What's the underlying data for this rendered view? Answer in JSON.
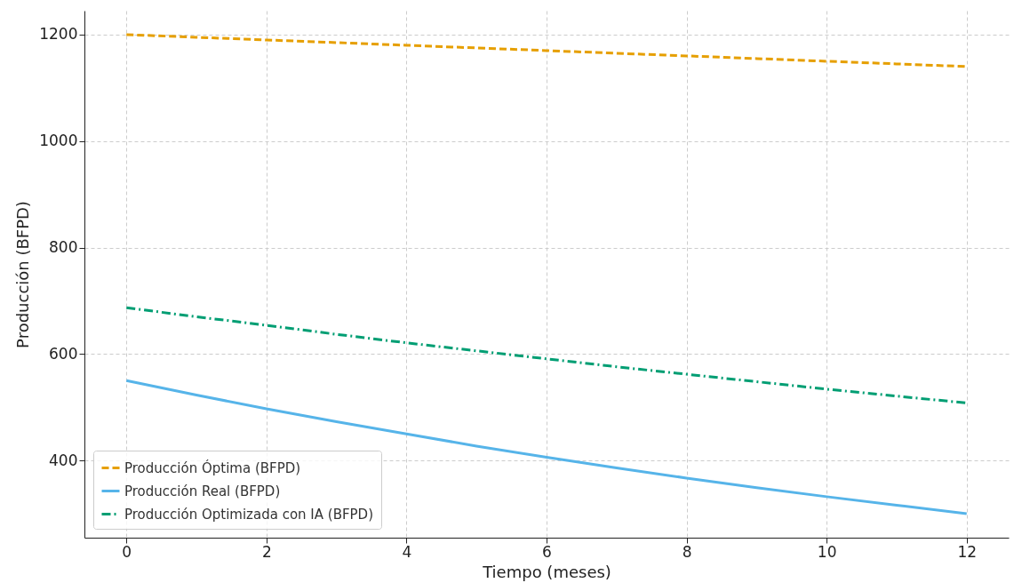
{
  "chart_data": {
    "type": "line",
    "xlabel": "Tiempo (meses)",
    "ylabel": "Producción (BFPD)",
    "x": [
      0,
      1,
      2,
      3,
      4,
      5,
      6,
      7,
      8,
      9,
      10,
      11,
      12
    ],
    "series": [
      {
        "name": "Producción Óptima (BFPD)",
        "color": "#e69f00",
        "line_style": "dashed",
        "values": [
          1200,
          1195,
          1190,
          1185,
          1180,
          1175,
          1170,
          1165,
          1160,
          1155,
          1150,
          1145,
          1140
        ]
      },
      {
        "name": "Producción Real (BFPD)",
        "color": "#56b4e9",
        "line_style": "solid",
        "values": [
          550,
          523,
          497,
          473,
          450,
          427,
          406,
          386,
          367,
          349,
          332,
          316,
          300
        ]
      },
      {
        "name": "Producción Optimizada con IA (BFPD)",
        "color": "#009e73",
        "line_style": "dashdot",
        "values": [
          687,
          670,
          654,
          637,
          621,
          606,
          591,
          576,
          562,
          548,
          534,
          521,
          508
        ]
      }
    ],
    "xlim": [
      -0.6,
      12.6
    ],
    "ylim": [
      255,
      1245
    ],
    "xticks": [
      0,
      2,
      4,
      6,
      8,
      10,
      12
    ],
    "yticks": [
      400,
      600,
      800,
      1000,
      1200
    ],
    "grid": true,
    "legend": "bottom left",
    "marker": "none"
  }
}
